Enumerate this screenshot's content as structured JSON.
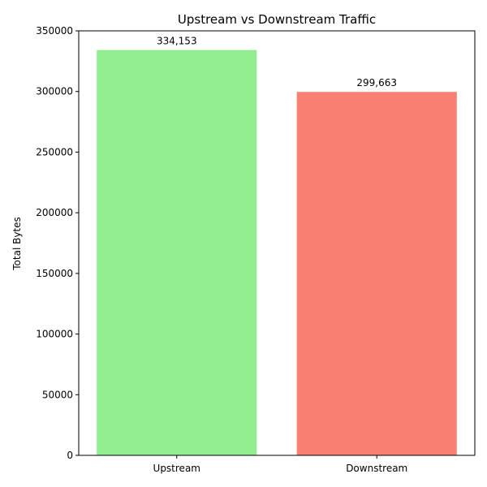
{
  "chart_data": {
    "type": "bar",
    "title": "Upstream vs Downstream Traffic",
    "xlabel": "",
    "ylabel": "Total Bytes",
    "ylim": [
      0,
      350000
    ],
    "yticks": [
      0,
      50000,
      100000,
      150000,
      200000,
      250000,
      300000,
      350000
    ],
    "ytick_labels": [
      "0",
      "50000",
      "100000",
      "150000",
      "200000",
      "250000",
      "300000",
      "350000"
    ],
    "categories": [
      "Upstream",
      "Downstream"
    ],
    "values": [
      334153,
      299663
    ],
    "value_labels": [
      "334,153",
      "299,663"
    ],
    "colors": [
      "#90ee90",
      "#fa8072"
    ],
    "grid": false,
    "legend": "none"
  }
}
